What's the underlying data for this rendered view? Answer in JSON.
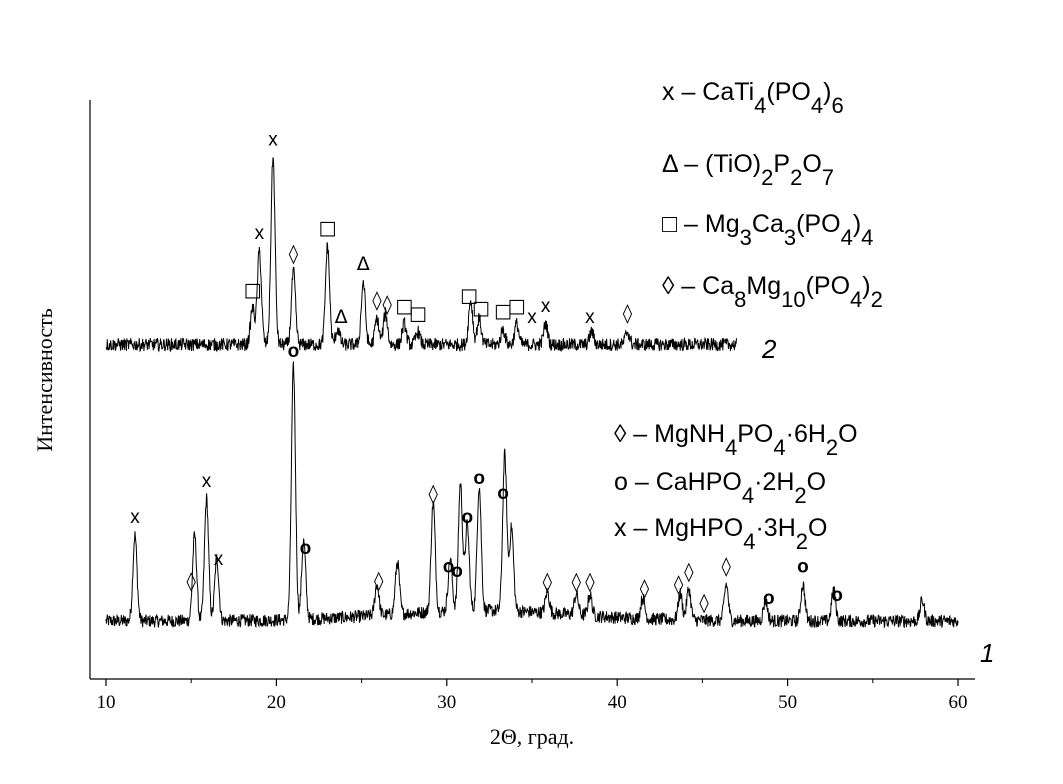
{
  "chart_data": {
    "type": "line",
    "xlabel": "2Θ, град.",
    "ylabel": "Интенсивность",
    "xlim": [
      10,
      60
    ],
    "xticks": [
      10,
      20,
      30,
      40,
      50,
      60
    ],
    "grid": false,
    "series": [
      {
        "name": "1",
        "x_range": [
          10,
          60
        ],
        "baseline": 0.15,
        "noise": 0.05,
        "peaks": [
          {
            "x": 11.7,
            "h": 0.33
          },
          {
            "x": 15.2,
            "h": 0.33
          },
          {
            "x": 15.9,
            "h": 0.47
          },
          {
            "x": 16.5,
            "h": 0.24
          },
          {
            "x": 21.0,
            "h": 0.97
          },
          {
            "x": 21.6,
            "h": 0.3
          },
          {
            "x": 25.9,
            "h": 0.12
          },
          {
            "x": 27.1,
            "h": 0.2
          },
          {
            "x": 29.2,
            "h": 0.42
          },
          {
            "x": 30.2,
            "h": 0.2
          },
          {
            "x": 30.8,
            "h": 0.49
          },
          {
            "x": 31.2,
            "h": 0.33
          },
          {
            "x": 31.9,
            "h": 0.48
          },
          {
            "x": 33.4,
            "h": 0.6
          },
          {
            "x": 33.8,
            "h": 0.32
          },
          {
            "x": 35.9,
            "h": 0.08
          },
          {
            "x": 37.6,
            "h": 0.08
          },
          {
            "x": 38.4,
            "h": 0.08
          },
          {
            "x": 41.5,
            "h": 0.08
          },
          {
            "x": 43.7,
            "h": 0.1
          },
          {
            "x": 44.2,
            "h": 0.12
          },
          {
            "x": 46.4,
            "h": 0.14
          },
          {
            "x": 48.7,
            "h": 0.08
          },
          {
            "x": 50.9,
            "h": 0.14
          },
          {
            "x": 52.7,
            "h": 0.12
          },
          {
            "x": 57.9,
            "h": 0.08
          }
        ]
      },
      {
        "name": "2",
        "x_range": [
          10,
          47
        ],
        "baseline": 0.04,
        "noise": 0.05,
        "peaks": [
          {
            "x": 18.6,
            "h": 0.14
          },
          {
            "x": 19.0,
            "h": 0.36
          },
          {
            "x": 19.8,
            "h": 0.72
          },
          {
            "x": 21.0,
            "h": 0.28
          },
          {
            "x": 23.0,
            "h": 0.38
          },
          {
            "x": 23.6,
            "h": 0.06
          },
          {
            "x": 25.1,
            "h": 0.24
          },
          {
            "x": 25.9,
            "h": 0.1
          },
          {
            "x": 26.4,
            "h": 0.12
          },
          {
            "x": 27.5,
            "h": 0.08
          },
          {
            "x": 28.3,
            "h": 0.05
          },
          {
            "x": 31.4,
            "h": 0.17
          },
          {
            "x": 31.9,
            "h": 0.1
          },
          {
            "x": 33.3,
            "h": 0.06
          },
          {
            "x": 34.1,
            "h": 0.08
          },
          {
            "x": 35.8,
            "h": 0.08
          },
          {
            "x": 38.5,
            "h": 0.05
          },
          {
            "x": 40.6,
            "h": 0.05
          }
        ]
      }
    ],
    "markers": {
      "series_2": [
        {
          "x": 18.6,
          "sym": "□"
        },
        {
          "x": 19.0,
          "sym": "x"
        },
        {
          "x": 19.8,
          "sym": "x"
        },
        {
          "x": 21.0,
          "sym": "◊"
        },
        {
          "x": 23.0,
          "sym": "□"
        },
        {
          "x": 23.8,
          "sym": "Δ"
        },
        {
          "x": 25.1,
          "sym": "Δ"
        },
        {
          "x": 25.9,
          "sym": "◊"
        },
        {
          "x": 26.5,
          "sym": "◊"
        },
        {
          "x": 27.5,
          "sym": "□"
        },
        {
          "x": 28.3,
          "sym": "□"
        },
        {
          "x": 31.3,
          "sym": "□"
        },
        {
          "x": 32.0,
          "sym": "□"
        },
        {
          "x": 33.3,
          "sym": "□"
        },
        {
          "x": 34.1,
          "sym": "□"
        },
        {
          "x": 35.0,
          "sym": "x"
        },
        {
          "x": 35.8,
          "sym": "x"
        },
        {
          "x": 38.4,
          "sym": "x"
        },
        {
          "x": 40.6,
          "sym": "◊"
        }
      ],
      "series_1": [
        {
          "x": 11.7,
          "sym": "x"
        },
        {
          "x": 15.0,
          "sym": "◊"
        },
        {
          "x": 15.9,
          "sym": "x"
        },
        {
          "x": 16.6,
          "sym": "x"
        },
        {
          "x": 21.0,
          "sym": "o"
        },
        {
          "x": 21.7,
          "sym": "o"
        },
        {
          "x": 26.0,
          "sym": "◊"
        },
        {
          "x": 29.2,
          "sym": "◊"
        },
        {
          "x": 30.1,
          "sym": "o"
        },
        {
          "x": 30.6,
          "sym": "o"
        },
        {
          "x": 31.2,
          "sym": "o"
        },
        {
          "x": 31.9,
          "sym": "o"
        },
        {
          "x": 33.3,
          "sym": "o"
        },
        {
          "x": 35.9,
          "sym": "◊"
        },
        {
          "x": 37.6,
          "sym": "◊"
        },
        {
          "x": 38.4,
          "sym": "◊"
        },
        {
          "x": 41.6,
          "sym": "◊"
        },
        {
          "x": 43.6,
          "sym": "◊"
        },
        {
          "x": 44.2,
          "sym": "◊"
        },
        {
          "x": 45.1,
          "sym": "◊"
        },
        {
          "x": 46.4,
          "sym": "◊"
        },
        {
          "x": 48.9,
          "sym": "o"
        },
        {
          "x": 50.9,
          "sym": "o"
        },
        {
          "x": 52.9,
          "sym": "o"
        }
      ]
    },
    "legend_2": [
      {
        "sym": "x",
        "label": "CaTi4(PO4)6"
      },
      {
        "sym": "Δ",
        "label": "(TiO)2P2O7"
      },
      {
        "sym": "□",
        "label": "Mg3Ca3(PO4)4"
      },
      {
        "sym": "◊",
        "label": "Ca8Mg10(PO4)2"
      }
    ],
    "legend_1": [
      {
        "sym": "◊",
        "label": "MgNH4PO4·6H2O"
      },
      {
        "sym": "o",
        "label": "CaHPO4·2H2O"
      },
      {
        "sym": "x",
        "label": "MgHPO4·3H2O"
      }
    ]
  }
}
